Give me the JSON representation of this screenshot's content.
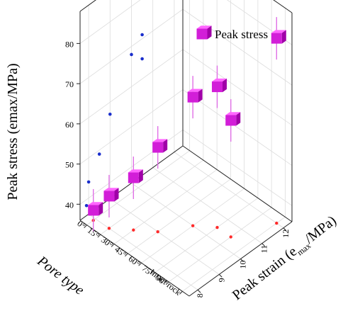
{
  "chart_data": {
    "type": "scatter",
    "title": "",
    "zlabel": "Peak stress (emax/MPa)",
    "xlabel": "Pore type",
    "ylabel_prefix": "Peak strain (e",
    "ylabel_sub": "max",
    "ylabel_suffix": "/MPa)",
    "legend": {
      "label": "Peak stress",
      "position": "top-right"
    },
    "x_categories": [
      "0°",
      "15°",
      "30°",
      "45°",
      "60°",
      "75°",
      "90°",
      "Intact rock"
    ],
    "y_ticks": [
      "8",
      "9",
      "10",
      "11",
      "12"
    ],
    "z_ticks": [
      "40",
      "50",
      "60",
      "70",
      "80"
    ],
    "ylim": [
      7.6,
      12.4
    ],
    "zlim": [
      36,
      88
    ],
    "series": [
      {
        "name": "Peak stress",
        "points": [
          {
            "x": "0°",
            "strain": 7.9,
            "stress": 38.5
          },
          {
            "x": "15°",
            "strain": 8.0,
            "stress": 44.0
          },
          {
            "x": "30°",
            "strain": 8.5,
            "stress": 49.0
          },
          {
            "x": "45°",
            "strain": 9.0,
            "stress": 57.0
          },
          {
            "x": "60°",
            "strain": 10.0,
            "stress": 68.0
          },
          {
            "x": "75°",
            "strain": 10.5,
            "stress": 71.0
          },
          {
            "x": "90°",
            "strain": 10.5,
            "stress": 65.0
          },
          {
            "x": "Intact rock",
            "strain": 12.0,
            "stress": 82.0
          }
        ]
      }
    ]
  }
}
